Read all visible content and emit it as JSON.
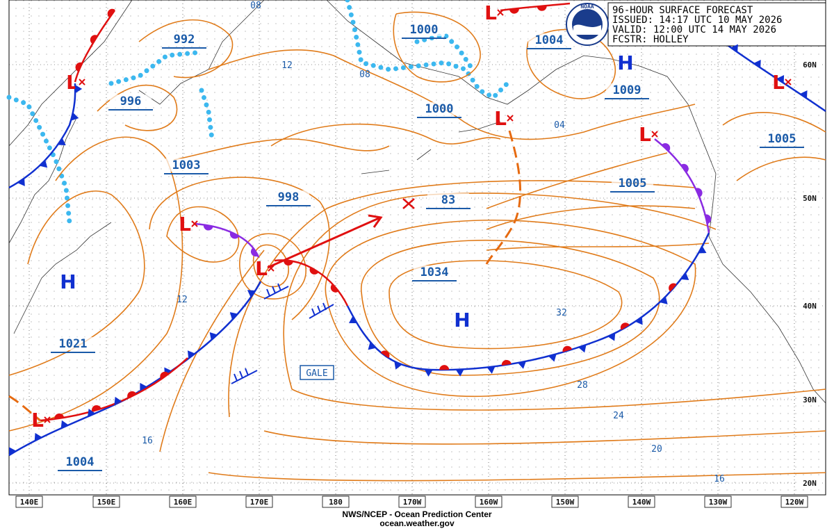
{
  "header": {
    "lines": [
      "96-HOUR SURFACE FORECAST",
      "ISSUED: 14:17 UTC 10 MAY 2026",
      "VALID:  12:00 UTC 14 MAY 2026",
      "FCSTR: HOLLEY"
    ]
  },
  "logo": "NOAA",
  "footer": {
    "agency": "NWS/NCEP - Ocean Prediction Center",
    "url": "ocean.weather.gov"
  },
  "longitudes": [
    "140E",
    "150E",
    "160E",
    "170E",
    "180",
    "170W",
    "160W",
    "150W",
    "140W",
    "130W",
    "120W"
  ],
  "latitudes": [
    "60N",
    "50N",
    "40N",
    "30N",
    "20N"
  ],
  "pressure_labels": [
    "992",
    "996",
    "1003",
    "998",
    "1021",
    "1004",
    "1000",
    "1000",
    "1004",
    "1009",
    "1005",
    "1005",
    "1034",
    "83"
  ],
  "isobar_labels": [
    "08",
    "12",
    "08",
    "04",
    "12",
    "16",
    "32",
    "28",
    "24",
    "20",
    "16"
  ],
  "highs": [
    "H",
    "H",
    "H"
  ],
  "lows": [
    "L",
    "L",
    "L",
    "L",
    "L",
    "L",
    "L",
    "L"
  ],
  "warning": "GALE"
}
